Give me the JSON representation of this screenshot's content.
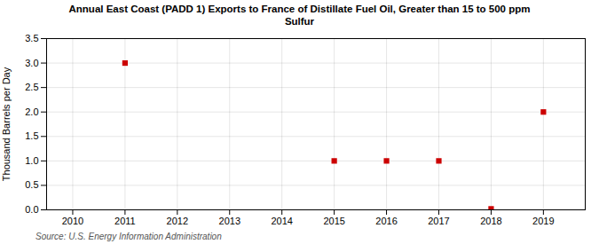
{
  "chart_data": {
    "type": "scatter",
    "title": "Annual East Coast (PADD 1) Exports to France of Distillate Fuel Oil, Greater than 15 to 500 ppm\nSulfur",
    "y_label": "Thousand Barrels per Day",
    "annotations": [
      "Source: U.S. Energy Information Administration"
    ],
    "x": [
      2011,
      2015,
      2016,
      2017,
      2018,
      2019
    ],
    "values": [
      3.0,
      1.0,
      1.0,
      1.0,
      0.02,
      2.0
    ],
    "color": "#cc0000",
    "marker": "square",
    "xlim": [
      2009.5,
      2019.8
    ],
    "xticks": [
      2010,
      2011,
      2012,
      2013,
      2014,
      2015,
      2016,
      2017,
      2018,
      2019
    ],
    "ylim": [
      0.0,
      3.5
    ],
    "yticks": [
      {
        "value": 0.0,
        "label": "0.0"
      },
      0.5,
      {
        "value": 1.0,
        "label": "1.0"
      },
      1.5,
      {
        "value": 2.0,
        "label": "2.0"
      },
      2.5,
      {
        "value": 3.0,
        "label": "3.0"
      },
      3.5
    ],
    "grid": true
  }
}
